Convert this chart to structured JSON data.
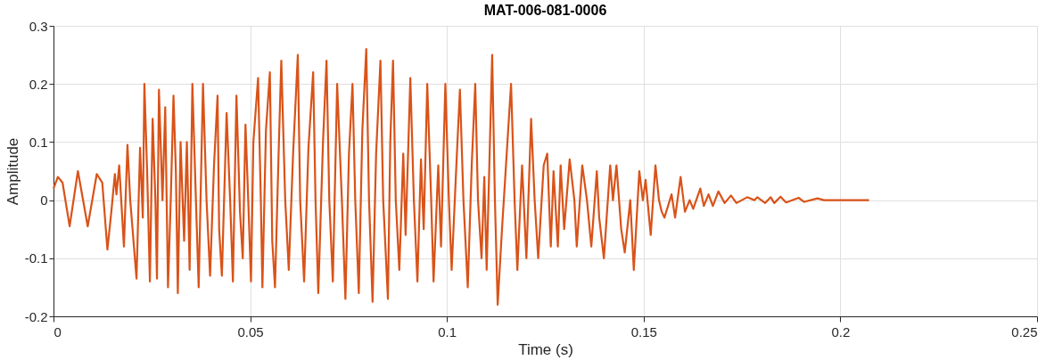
{
  "chart_data": {
    "type": "line",
    "title": "MAT-006-081-0006",
    "xlabel": "Time (s)",
    "ylabel": "Amplitude",
    "xlim": [
      0,
      0.25
    ],
    "ylim": [
      -0.2,
      0.3
    ],
    "xticks": [
      0,
      0.05,
      0.1,
      0.15,
      0.2,
      0.25
    ],
    "yticks": [
      -0.2,
      -0.1,
      0,
      0.1,
      0.2,
      0.3
    ],
    "grid": true,
    "marker": "none",
    "line_style": "solid",
    "series": [
      {
        "color": "#d95319",
        "x": [
          0,
          0.0011,
          0.0023,
          0.0041,
          0.0062,
          0.0087,
          0.011,
          0.0124,
          0.0137,
          0.0147,
          0.0156,
          0.016,
          0.0167,
          0.0179,
          0.0188,
          0.0195,
          0.0211,
          0.022,
          0.0227,
          0.0231,
          0.0238,
          0.0245,
          0.0252,
          0.0259,
          0.0263,
          0.0268,
          0.0277,
          0.0284,
          0.0291,
          0.0298,
          0.0305,
          0.0311,
          0.0316,
          0.0323,
          0.0332,
          0.0339,
          0.0346,
          0.0353,
          0.0362,
          0.0369,
          0.038,
          0.0389,
          0.0398,
          0.0408,
          0.0417,
          0.0421,
          0.0428,
          0.044,
          0.0449,
          0.0456,
          0.0465,
          0.0474,
          0.0481,
          0.0488,
          0.0495,
          0.0502,
          0.0508,
          0.052,
          0.0527,
          0.0531,
          0.054,
          0.055,
          0.0556,
          0.0563,
          0.0573,
          0.0579,
          0.0589,
          0.0598,
          0.0609,
          0.0621,
          0.0627,
          0.0637,
          0.0648,
          0.066,
          0.0666,
          0.0673,
          0.0685,
          0.0694,
          0.0701,
          0.071,
          0.0721,
          0.0733,
          0.0742,
          0.0751,
          0.076,
          0.0767,
          0.0776,
          0.0785,
          0.0795,
          0.0802,
          0.0811,
          0.082,
          0.0831,
          0.0838,
          0.085,
          0.0856,
          0.0863,
          0.087,
          0.0879,
          0.0889,
          0.0895,
          0.0907,
          0.0916,
          0.0925,
          0.0934,
          0.0941,
          0.095,
          0.096,
          0.0966,
          0.0978,
          0.0985,
          0.0996,
          0.1005,
          0.1012,
          0.1024,
          0.1033,
          0.1042,
          0.1053,
          0.1063,
          0.1072,
          0.1079,
          0.1088,
          0.1095,
          0.1101,
          0.1115,
          0.1122,
          0.1129,
          0.114,
          0.1163,
          0.1172,
          0.1179,
          0.1191,
          0.1202,
          0.1214,
          0.1223,
          0.1232,
          0.1246,
          0.1255,
          0.1264,
          0.1271,
          0.1282,
          0.1289,
          0.1298,
          0.1312,
          0.1324,
          0.133,
          0.1344,
          0.1356,
          0.1367,
          0.1381,
          0.1387,
          0.1399,
          0.1415,
          0.1422,
          0.1431,
          0.1443,
          0.1452,
          0.1466,
          0.1475,
          0.1489,
          0.1498,
          0.1505,
          0.1518,
          0.153,
          0.1539,
          0.1546,
          0.1553,
          0.1571,
          0.158,
          0.1594,
          0.1605,
          0.1617,
          0.1626,
          0.1644,
          0.1653,
          0.1665,
          0.1676,
          0.169,
          0.1706,
          0.1722,
          0.1736,
          0.1763,
          0.1782,
          0.1789,
          0.1809,
          0.1823,
          0.1832,
          0.1848,
          0.1862,
          0.1894,
          0.1908,
          0.1942,
          0.1958,
          0.1992,
          0.2015,
          0.2073
        ],
        "values": [
          0.02,
          0.04,
          0.03,
          -0.045,
          0.05,
          -0.045,
          0.045,
          0.03,
          -0.085,
          -0.02,
          0.045,
          0.01,
          0.06,
          -0.08,
          0.095,
          0.0,
          -0.135,
          0.09,
          -0.03,
          0.2,
          0.05,
          -0.14,
          0.14,
          0.0,
          -0.135,
          0.19,
          0.0,
          0.16,
          -0.15,
          0.0,
          0.18,
          0.05,
          -0.16,
          0.1,
          -0.07,
          0.1,
          -0.12,
          0.2,
          0.0,
          -0.15,
          0.2,
          0.0,
          -0.13,
          0.06,
          0.18,
          -0.05,
          -0.13,
          0.15,
          0.0,
          -0.14,
          0.18,
          -0.02,
          -0.1,
          0.13,
          0.0,
          -0.14,
          0.1,
          0.21,
          0.0,
          -0.15,
          0.12,
          0.22,
          -0.07,
          -0.15,
          0.1,
          0.24,
          0.0,
          -0.12,
          0.08,
          0.25,
          0.0,
          -0.14,
          0.09,
          0.22,
          0.0,
          -0.16,
          0.1,
          0.24,
          0.0,
          -0.14,
          0.2,
          0.0,
          -0.17,
          0.08,
          0.2,
          0.0,
          -0.16,
          0.12,
          0.26,
          0.0,
          -0.175,
          0.08,
          0.24,
          0.0,
          -0.17,
          0.1,
          0.24,
          0.0,
          -0.12,
          0.08,
          -0.06,
          0.21,
          0.0,
          -0.14,
          0.07,
          -0.05,
          0.2,
          0.0,
          -0.14,
          0.06,
          -0.08,
          0.2,
          0.0,
          -0.12,
          0.06,
          0.19,
          0.0,
          -0.15,
          0.06,
          0.2,
          0.0,
          -0.1,
          0.04,
          -0.12,
          0.25,
          0.0,
          -0.18,
          -0.05,
          0.2,
          0.0,
          -0.12,
          0.06,
          -0.1,
          0.14,
          0.0,
          -0.1,
          0.06,
          0.08,
          -0.08,
          0.05,
          -0.08,
          0.06,
          -0.05,
          0.07,
          0.0,
          -0.08,
          0.06,
          0.0,
          -0.08,
          0.05,
          -0.03,
          -0.1,
          0.06,
          0.0,
          0.06,
          -0.05,
          -0.09,
          0.0,
          -0.12,
          0.05,
          0.0,
          0.035,
          -0.06,
          0.06,
          0.0,
          -0.02,
          -0.03,
          0.01,
          -0.03,
          0.04,
          -0.02,
          0.0,
          -0.015,
          0.02,
          -0.01,
          0.01,
          -0.01,
          0.015,
          -0.005,
          0.008,
          -0.005,
          0.005,
          0.0,
          0.005,
          -0.005,
          0.005,
          -0.005,
          0.006,
          -0.004,
          0.004,
          -0.003,
          0.003,
          0.0,
          0.0,
          0.0,
          0.0
        ]
      }
    ]
  }
}
